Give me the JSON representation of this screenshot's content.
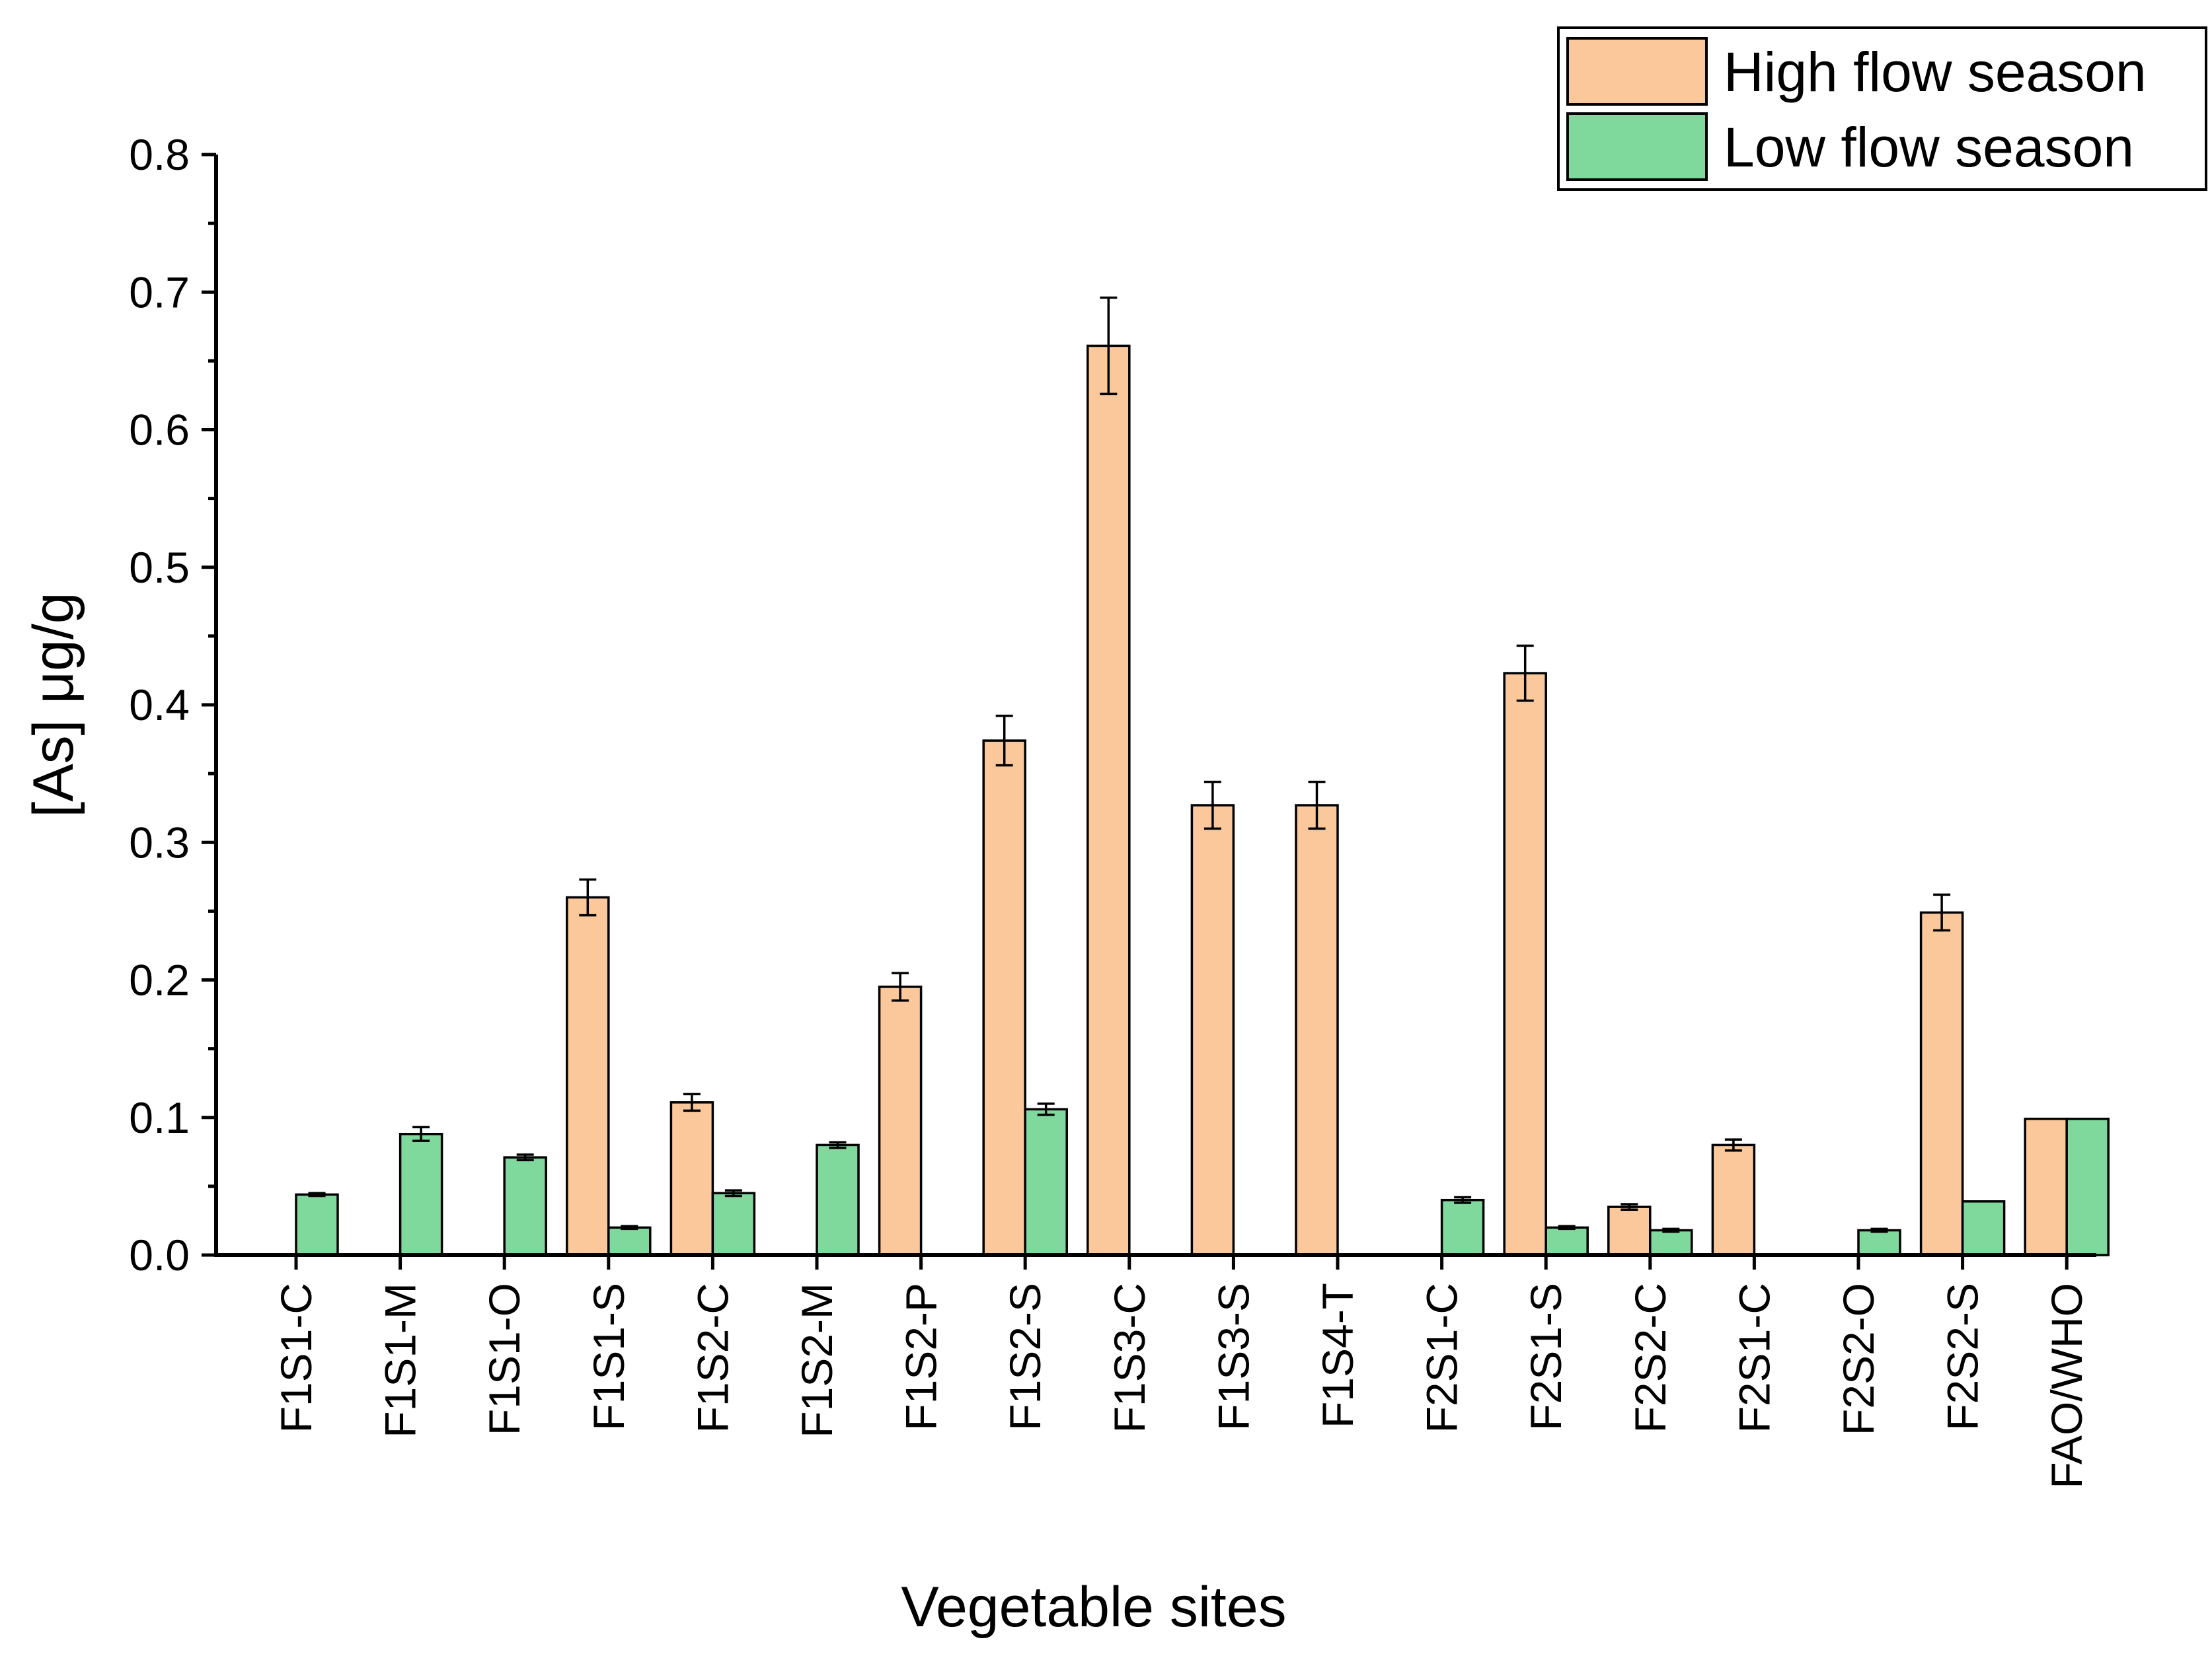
{
  "chart_data": {
    "type": "bar",
    "title": "",
    "xlabel": "Vegetable sites",
    "ylabel": "[As] μg/g",
    "ylim": [
      0,
      0.8
    ],
    "yticks": [
      "0.0",
      "0.1",
      "0.2",
      "0.3",
      "0.4",
      "0.5",
      "0.6",
      "0.7",
      "0.8"
    ],
    "legend_position": "top-right",
    "grid": false,
    "categories": [
      "F1S1-C",
      "F1S1-M",
      "F1S1-O",
      "F1S1-S",
      "F1S2-C",
      "F1S2-M",
      "F1S2-P",
      "F1S2-S",
      "F1S3-C",
      "F1S3-S",
      "F1S4-T",
      "F2S1-C",
      "F2S1-S",
      "F2S2-C",
      "F2S1-C",
      "F2S2-O",
      "F2S2-S",
      "FAO/WHO"
    ],
    "series": [
      {
        "name": "High flow season",
        "color": "#FAC89B",
        "values": [
          null,
          null,
          null,
          0.26,
          0.111,
          null,
          0.195,
          0.374,
          0.661,
          0.327,
          0.327,
          null,
          0.423,
          0.035,
          0.08,
          null,
          0.249,
          0.099
        ],
        "errors": [
          null,
          null,
          null,
          0.013,
          0.006,
          null,
          0.01,
          0.018,
          0.035,
          0.017,
          0.017,
          null,
          0.02,
          0.002,
          0.004,
          null,
          0.013,
          null
        ]
      },
      {
        "name": "Low flow season",
        "color": "#7FD99C",
        "values": [
          0.044,
          0.088,
          0.071,
          0.02,
          0.045,
          0.08,
          null,
          0.106,
          null,
          null,
          null,
          0.04,
          0.02,
          0.018,
          null,
          0.018,
          0.039,
          0.099
        ],
        "errors": [
          0.001,
          0.005,
          0.002,
          0.001,
          0.002,
          0.002,
          null,
          0.004,
          null,
          null,
          null,
          0.002,
          0.001,
          0.001,
          null,
          0.001,
          null,
          null
        ]
      }
    ]
  }
}
